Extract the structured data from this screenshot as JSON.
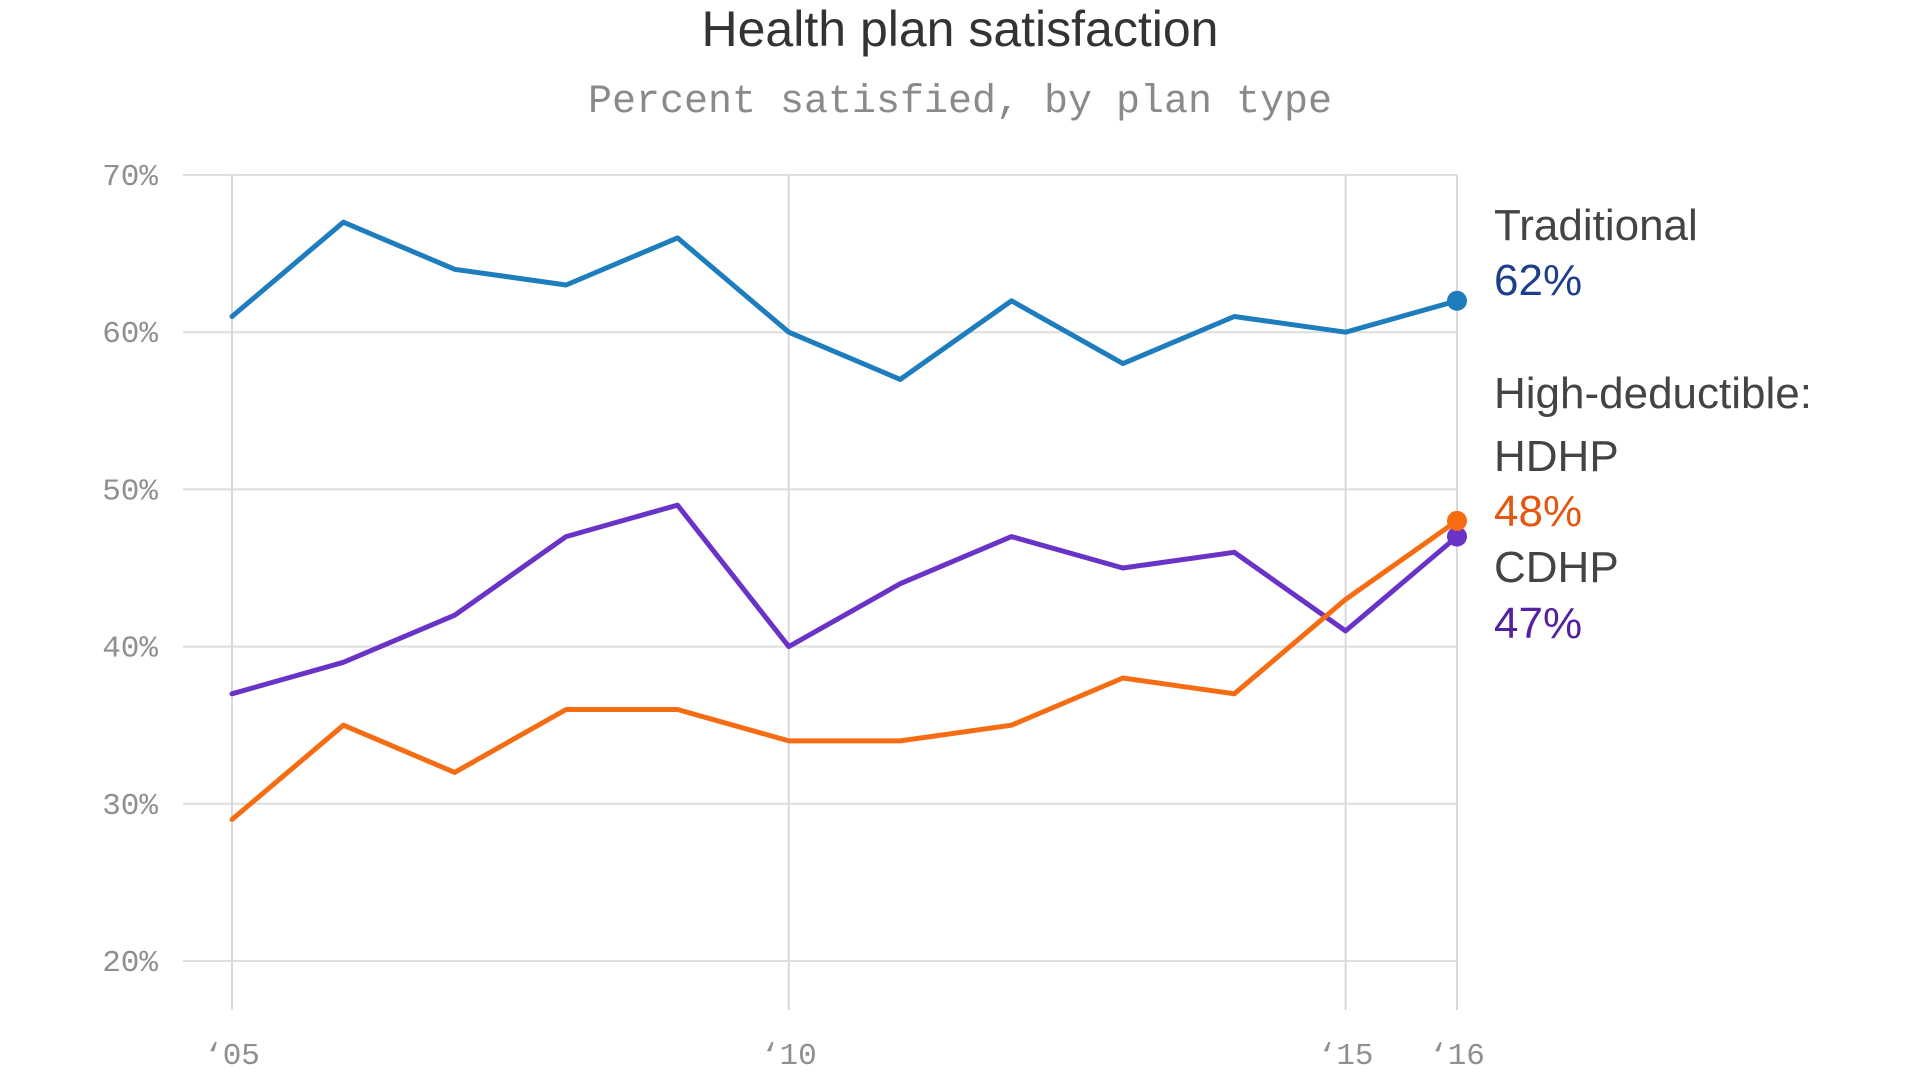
{
  "chart_data": {
    "type": "line",
    "title": "Health plan satisfaction",
    "subtitle": "Percent satisfied, by plan type",
    "x": [
      2005,
      2006,
      2007,
      2008,
      2009,
      2010,
      2011,
      2012,
      2013,
      2014,
      2015,
      2016
    ],
    "x_ticks": [
      {
        "value": 2005,
        "label": "‘05"
      },
      {
        "value": 2010,
        "label": "‘10"
      },
      {
        "value": 2015,
        "label": "‘15"
      },
      {
        "value": 2016,
        "label": "‘16"
      }
    ],
    "y_ticks": [
      {
        "value": 70,
        "label": "70%"
      },
      {
        "value": 60,
        "label": "60%"
      },
      {
        "value": 50,
        "label": "50%"
      },
      {
        "value": 40,
        "label": "40%"
      },
      {
        "value": 30,
        "label": "30%"
      },
      {
        "value": 20,
        "label": "20%"
      }
    ],
    "ylim": [
      20,
      70
    ],
    "xlim": [
      2005,
      2016
    ],
    "grid": true,
    "legend": "direct labels at right end",
    "series": [
      {
        "key": "traditional",
        "name": "Traditional",
        "color": "#1d7dbd",
        "label_color": "#1e3f8c",
        "values": [
          61,
          67,
          64,
          63,
          66,
          60,
          57,
          62,
          58,
          61,
          60,
          62
        ]
      },
      {
        "key": "hdhp",
        "name": "HDHP",
        "color": "#f66c12",
        "label_color": "#e5560e",
        "values": [
          29,
          35,
          32,
          36,
          36,
          34,
          34,
          35,
          38,
          37,
          43,
          48
        ]
      },
      {
        "key": "cdhp",
        "name": "CDHP",
        "color": "#6a33c7",
        "label_color": "#54229f",
        "values": [
          37,
          39,
          42,
          47,
          49,
          40,
          44,
          47,
          45,
          46,
          41,
          47
        ]
      }
    ],
    "end_labels": {
      "traditional_name": "Traditional",
      "traditional_value": "62%",
      "group_heading": "High-deductible:",
      "hdhp_name": "HDHP",
      "hdhp_value": "48%",
      "cdhp_name": "CDHP",
      "cdhp_value": "47%"
    },
    "colors": {
      "heading": "#444444",
      "traditional_label": "#1e3f8c",
      "hdhp_label": "#e5560e",
      "cdhp_label": "#54229f"
    }
  }
}
